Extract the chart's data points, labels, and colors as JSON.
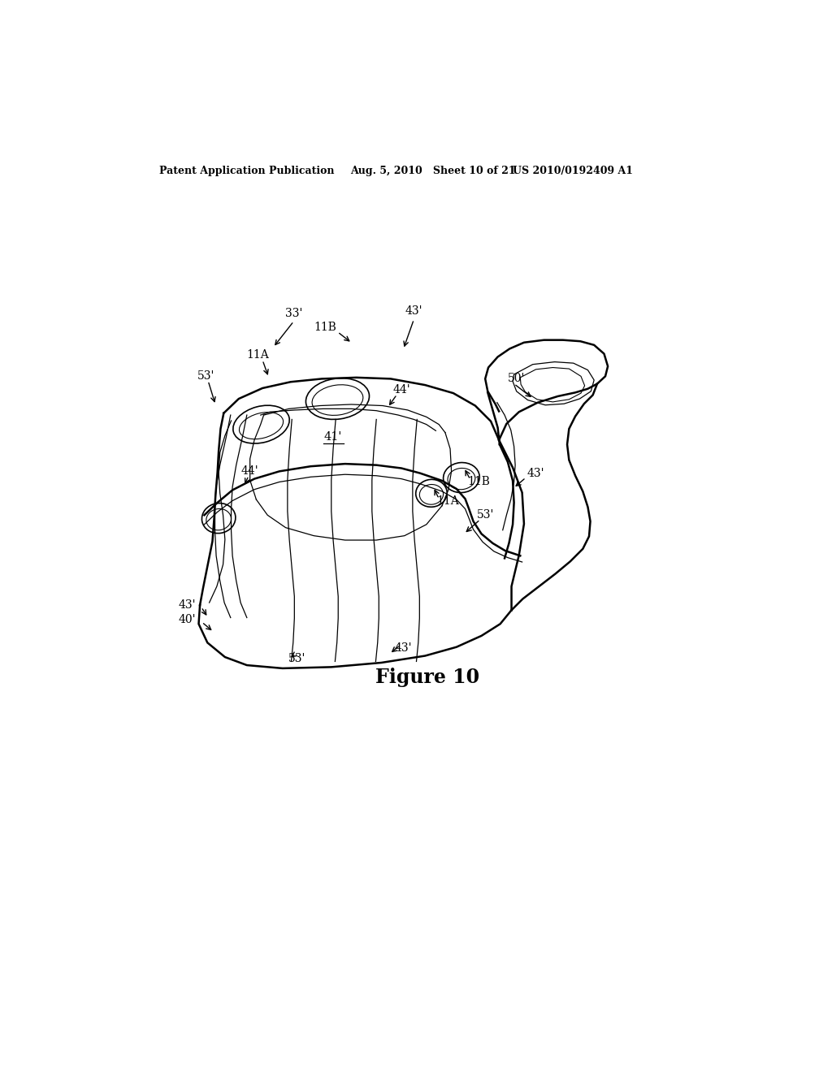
{
  "bg_color": "#ffffff",
  "header_left": "Patent Application Publication",
  "header_center": "Aug. 5, 2010   Sheet 10 of 21",
  "header_right": "US 2010/0192409 A1",
  "figure_label": "Figure 10",
  "figure_number_bold": true
}
